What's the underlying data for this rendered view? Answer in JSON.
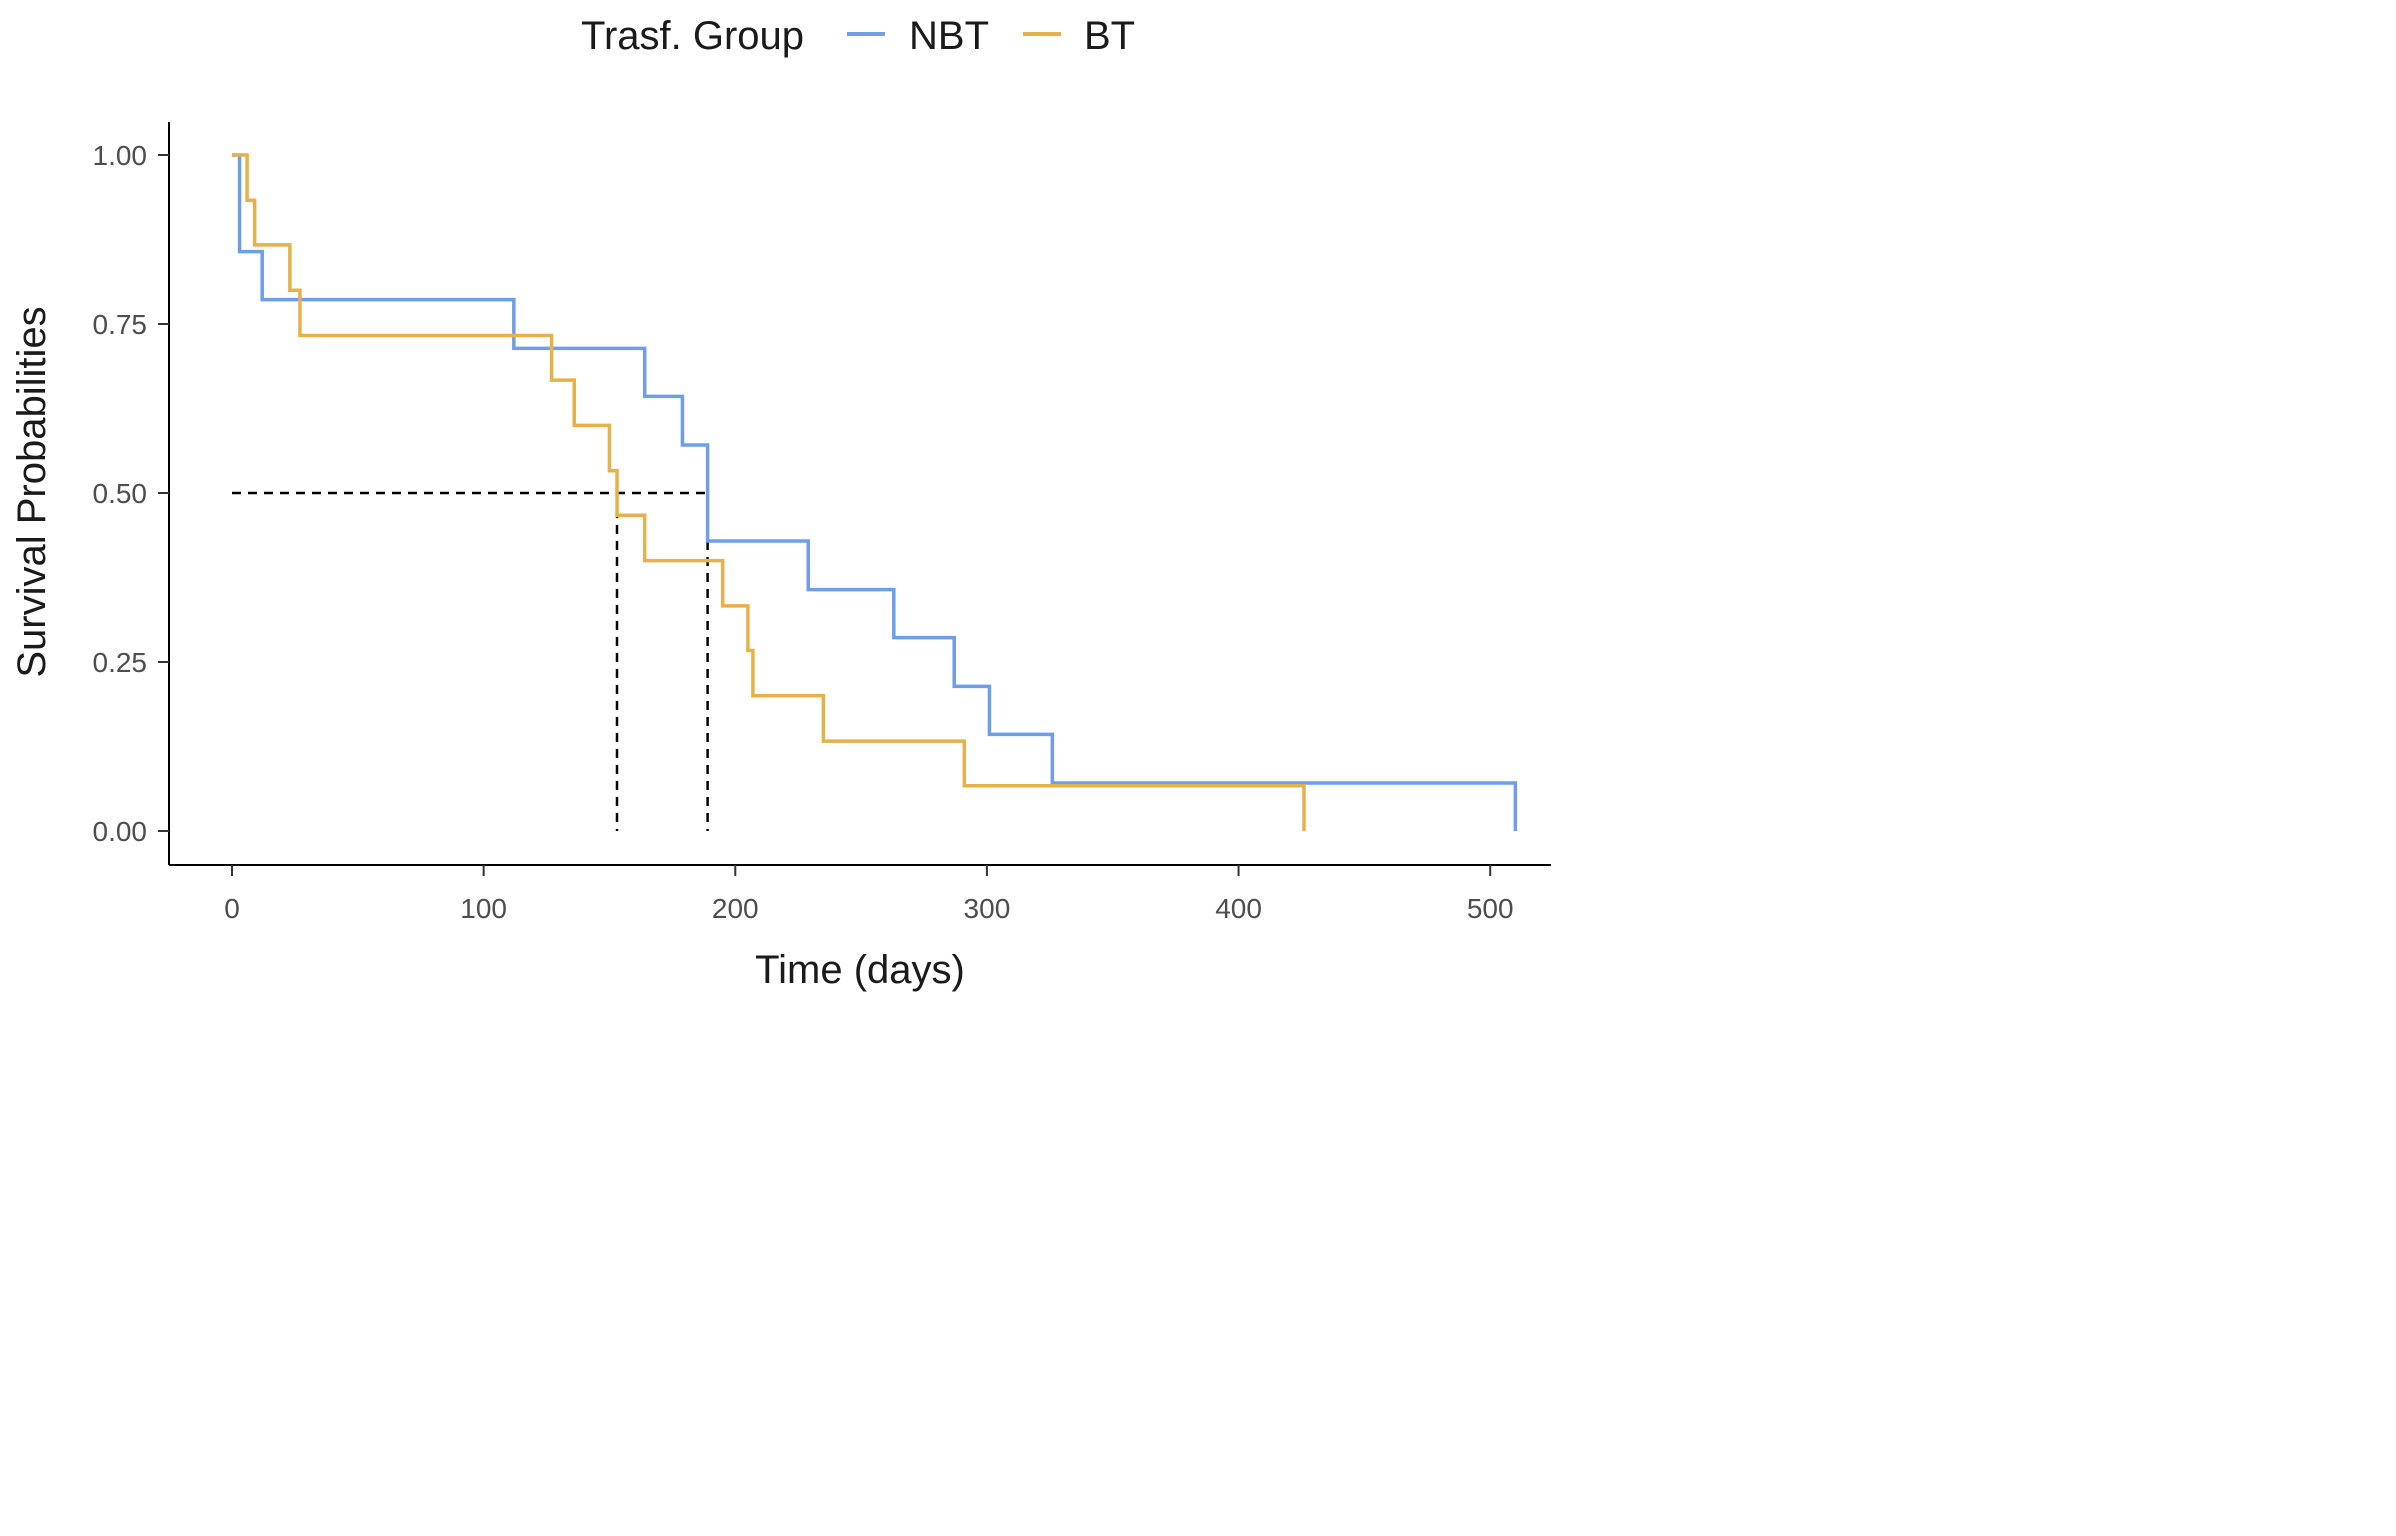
{
  "chart_data": {
    "type": "line",
    "subtype": "kaplan-meier-step",
    "title": "",
    "xlabel": "Time (days)",
    "ylabel": "Survival Probabilities",
    "xlim": [
      -25,
      525
    ],
    "ylim": [
      -0.05,
      1.05
    ],
    "x_ticks": [
      0,
      100,
      200,
      300,
      400,
      500
    ],
    "x_tick_labels": [
      "0",
      "100",
      "200",
      "300",
      "400",
      "500"
    ],
    "y_ticks": [
      0,
      0.25,
      0.5,
      0.75,
      1.0
    ],
    "y_tick_labels": [
      "0.00",
      "0.25",
      "0.50",
      "0.75",
      "1.00"
    ],
    "legend": {
      "title": "Trasf. Group",
      "placement": "top",
      "entries": [
        "NBT",
        "BT"
      ]
    },
    "series": [
      {
        "name": "NBT",
        "color": "#6f9de8",
        "points": [
          [
            0,
            1.0
          ],
          [
            3,
            0.857
          ],
          [
            12,
            0.786
          ],
          [
            112,
            0.714
          ],
          [
            164,
            0.643
          ],
          [
            179,
            0.571
          ],
          [
            189,
            0.429
          ],
          [
            229,
            0.357
          ],
          [
            263,
            0.286
          ],
          [
            287,
            0.214
          ],
          [
            301,
            0.143
          ],
          [
            326,
            0.071
          ],
          [
            510,
            0.0
          ]
        ]
      },
      {
        "name": "BT",
        "color": "#e7b14a",
        "points": [
          [
            0,
            1.0
          ],
          [
            6,
            0.933
          ],
          [
            9,
            0.867
          ],
          [
            23,
            0.8
          ],
          [
            27,
            0.733
          ],
          [
            127,
            0.667
          ],
          [
            136,
            0.6
          ],
          [
            150,
            0.533
          ],
          [
            153,
            0.467
          ],
          [
            164,
            0.4
          ],
          [
            195,
            0.333
          ],
          [
            205,
            0.267
          ],
          [
            207,
            0.2
          ],
          [
            235,
            0.133
          ],
          [
            291,
            0.067
          ],
          [
            426,
            0.0
          ]
        ]
      }
    ],
    "median_lines": {
      "y": 0.5,
      "x_values": [
        153,
        189
      ],
      "style": "dashed"
    }
  }
}
